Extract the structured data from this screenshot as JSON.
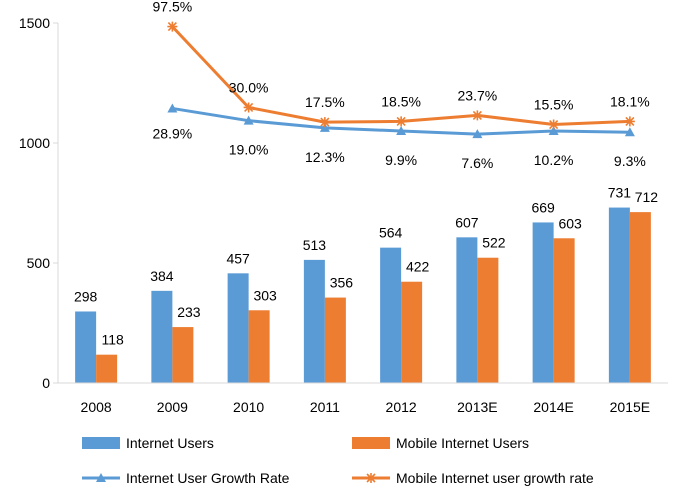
{
  "chart_data": {
    "type": "bar",
    "categories": [
      "2008",
      "2009",
      "2010",
      "2011",
      "2012",
      "2013E",
      "2014E",
      "2015E"
    ],
    "ylim": [
      0,
      1500
    ],
    "yticks": [
      0,
      500,
      1000,
      1500
    ],
    "grid": false,
    "legend_position": "bottom",
    "series": [
      {
        "name": "Internet Users",
        "kind": "bar",
        "color": "#5B9BD5",
        "values": [
          298,
          384,
          457,
          513,
          564,
          607,
          669,
          731
        ]
      },
      {
        "name": "Mobile Internet Users",
        "kind": "bar",
        "color": "#ED7D31",
        "values": [
          118,
          233,
          303,
          356,
          422,
          522,
          603,
          712
        ]
      },
      {
        "name": "Internet User Growth Rate",
        "kind": "line",
        "color": "#5B9BD5",
        "marker": "triangle",
        "values": [
          null,
          1144,
          1093,
          1063,
          1050,
          1037,
          1050,
          1045
        ],
        "rate_labels": [
          "",
          "28.9%",
          "19.0%",
          "12.3%",
          "9.9%",
          "7.6%",
          "10.2%",
          "9.3%"
        ]
      },
      {
        "name": "Mobile Internet user growth rate",
        "kind": "line",
        "color": "#ED7D31",
        "marker": "asterisk",
        "values": [
          null,
          1485,
          1148,
          1087,
          1090,
          1115,
          1077,
          1090
        ],
        "rate_labels": [
          "",
          "97.5%",
          "30.0%",
          "17.5%",
          "18.5%",
          "23.7%",
          "15.5%",
          "18.1%"
        ]
      }
    ]
  }
}
